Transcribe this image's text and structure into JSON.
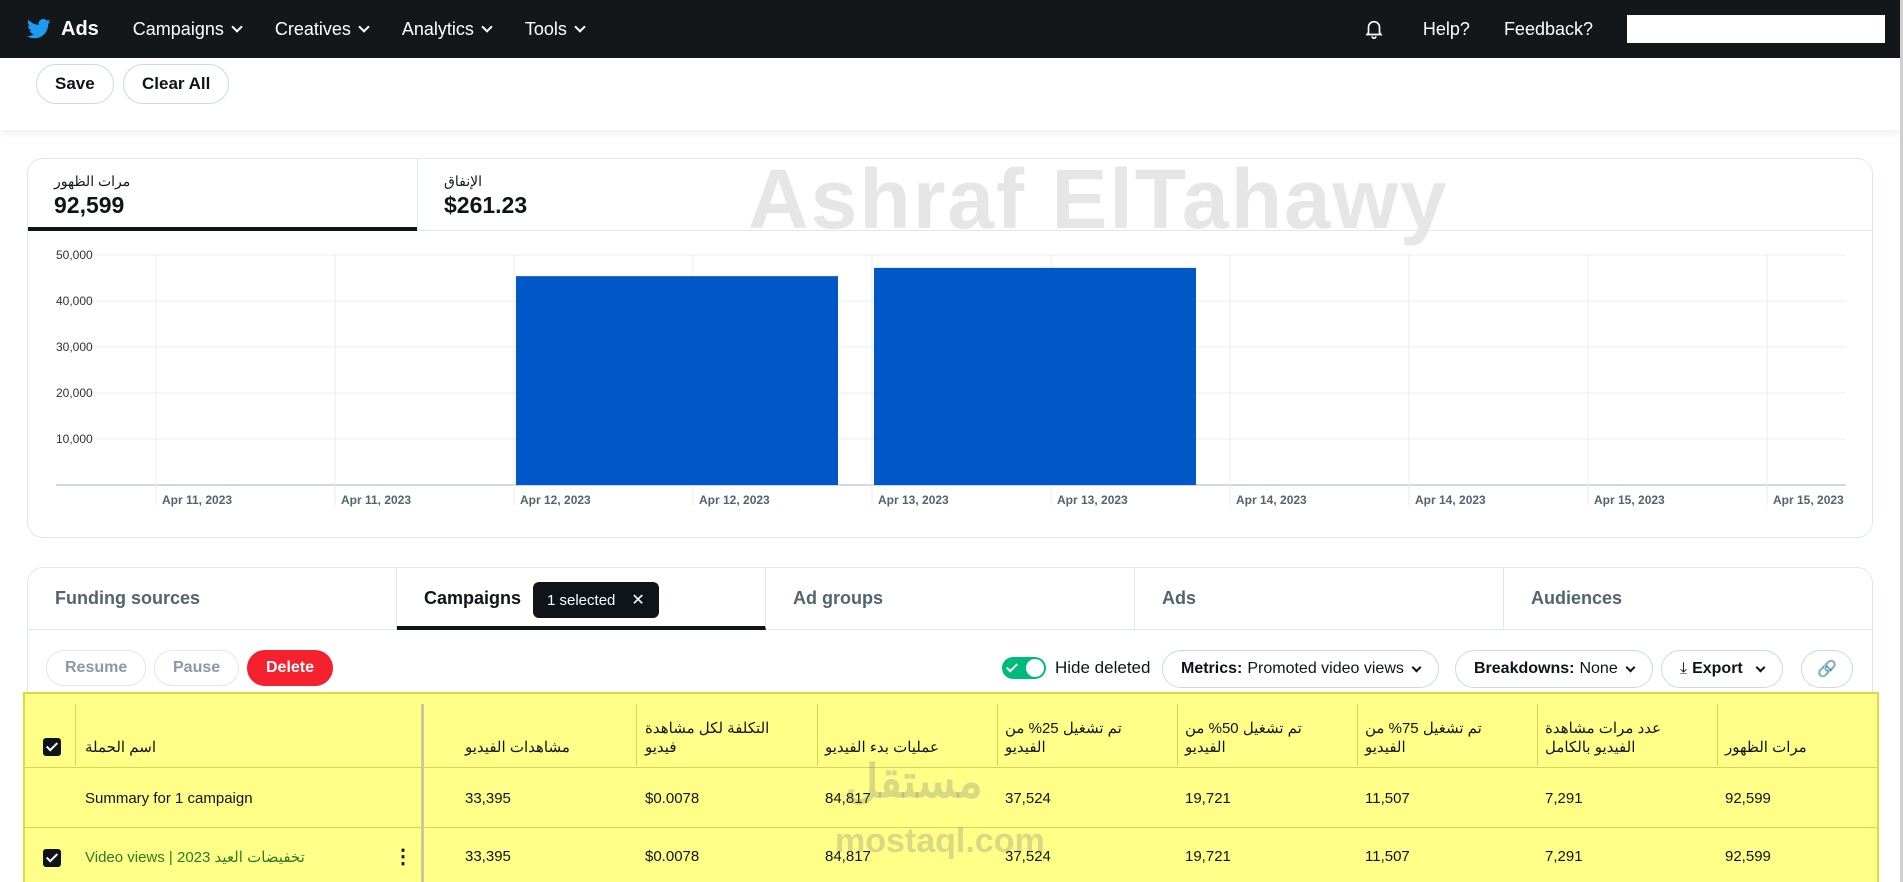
{
  "nav": {
    "brand": "Ads",
    "items": [
      "Campaigns",
      "Creatives",
      "Analytics",
      "Tools"
    ],
    "help": "Help?",
    "feedback": "Feedback?"
  },
  "toolbar": {
    "save": "Save",
    "clear_all": "Clear All"
  },
  "kpis": [
    {
      "label": "مرات الظهور",
      "value": "92,599"
    },
    {
      "label": "الإنفاق",
      "value": "$261.23"
    }
  ],
  "watermark": "Ashraf ElTahawy",
  "chart_data": {
    "type": "bar",
    "categories": [
      "Apr 11, 2023",
      "Apr 11, 2023",
      "Apr 12, 2023",
      "Apr 12, 2023",
      "Apr 13, 2023",
      "Apr 13, 2023",
      "Apr 14, 2023",
      "Apr 14, 2023",
      "Apr 15, 2023",
      "Apr 15, 2023"
    ],
    "values": [
      0,
      0,
      45400,
      45400,
      47200,
      47200,
      0,
      0,
      0,
      0
    ],
    "yticks": [
      "50,000",
      "40,000",
      "30,000",
      "20,000",
      "10,000"
    ],
    "ylim": [
      0,
      50000
    ],
    "bar_color": "#0057c8",
    "grid": true
  },
  "tabs": {
    "funding": "Funding sources",
    "campaigns": "Campaigns",
    "selected_chip": "1 selected",
    "ad_groups": "Ad groups",
    "ads": "Ads",
    "audiences": "Audiences"
  },
  "actions": {
    "resume": "Resume",
    "pause": "Pause",
    "delete": "Delete",
    "hide_deleted": "Hide deleted",
    "metrics_label": "Metrics:",
    "metrics_value": "Promoted video views",
    "breakdowns_label": "Breakdowns:",
    "breakdowns_value": "None",
    "export": "Export"
  },
  "table": {
    "headers": [
      "اسم الحملة",
      "مشاهدات الفيديو",
      "التكلفة لكل مشاهدة فيديو",
      "عمليات بدء الفيديو",
      "تم تشغيل 25% من الفيديو",
      "تم تشغيل 50% من الفيديو",
      "تم تشغيل 75% من الفيديو",
      "عدد مرات مشاهدة الفيديو بالكامل",
      "مرات الظهور"
    ],
    "summary": [
      "Summary for 1 campaign",
      "33,395",
      "$0.0078",
      "84,817",
      "37,524",
      "19,721",
      "11,507",
      "7,291",
      "92,599"
    ],
    "row1": [
      "Video views | 2023 تخفيضات العيد",
      "33,395",
      "$0.0078",
      "84,817",
      "37,524",
      "19,721",
      "11,507",
      "7,291",
      "92,599"
    ]
  },
  "overlay_watermark": {
    "arabic": "مستقل",
    "latin": "mostaql.com"
  }
}
